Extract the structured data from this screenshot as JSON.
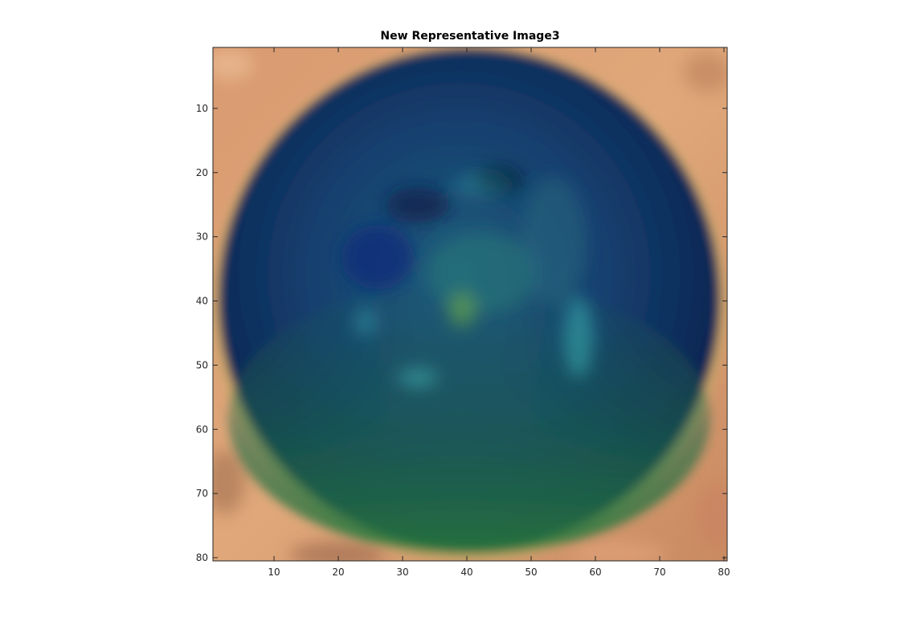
{
  "chart_data": {
    "type": "heatmap",
    "subtype": "rgb-image",
    "title": "New Representative Image3",
    "xlabel": "",
    "ylabel": "",
    "xlim": [
      0.5,
      80.5
    ],
    "ylim": [
      0.5,
      80.5
    ],
    "y_direction": "reverse",
    "image_size": [
      80,
      80
    ],
    "xticks": [
      10,
      20,
      30,
      40,
      50,
      60,
      70,
      80
    ],
    "yticks": [
      10,
      20,
      30,
      40,
      50,
      60,
      70,
      80
    ],
    "grid": false,
    "image_description_colors": {
      "background": "#d49a6c",
      "disk_dark": "#0d2a55",
      "disk_mid": "#1a4a78",
      "disk_bottom": "#1f6b4a",
      "highlight": "#3aa7a6",
      "spot": "#6aa84a"
    }
  }
}
